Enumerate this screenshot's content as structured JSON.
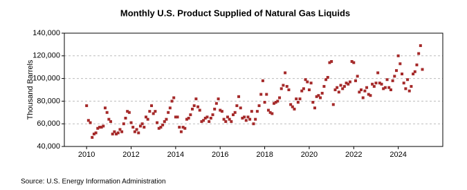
{
  "chart_data": {
    "type": "scatter",
    "title": "Monthly U.S. Product Supplied of Natural Gas Liquids",
    "y_label": "Thousand Barrels",
    "source": "Source: U.S. Energy Information Administration",
    "color": "#a52a2a",
    "grid": true,
    "xlim": [
      2009,
      2026
    ],
    "xticks": [
      2010,
      2012,
      2014,
      2016,
      2018,
      2020,
      2022,
      2024
    ],
    "ylim": [
      40000,
      140000
    ],
    "yticks": [
      {
        "value": 40000,
        "label": "40,000"
      },
      {
        "value": 60000,
        "label": "60,000"
      },
      {
        "value": 80000,
        "label": "80,000"
      },
      {
        "value": 100000,
        "label": "100,000"
      },
      {
        "value": 120000,
        "label": "120,000"
      },
      {
        "value": 140000,
        "label": "140,000"
      }
    ],
    "x": [
      2010.0,
      2010.083,
      2010.167,
      2010.25,
      2010.333,
      2010.417,
      2010.5,
      2010.583,
      2010.667,
      2010.75,
      2010.833,
      2010.917,
      2011.0,
      2011.083,
      2011.167,
      2011.25,
      2011.333,
      2011.417,
      2011.5,
      2011.583,
      2011.667,
      2011.75,
      2011.833,
      2011.917,
      2012.0,
      2012.083,
      2012.167,
      2012.25,
      2012.333,
      2012.417,
      2012.5,
      2012.583,
      2012.667,
      2012.75,
      2012.833,
      2012.917,
      2013.0,
      2013.083,
      2013.167,
      2013.25,
      2013.333,
      2013.417,
      2013.5,
      2013.583,
      2013.667,
      2013.75,
      2013.833,
      2013.917,
      2014.0,
      2014.083,
      2014.167,
      2014.25,
      2014.333,
      2014.417,
      2014.5,
      2014.583,
      2014.667,
      2014.75,
      2014.833,
      2014.917,
      2015.0,
      2015.083,
      2015.167,
      2015.25,
      2015.333,
      2015.417,
      2015.5,
      2015.583,
      2015.667,
      2015.75,
      2015.833,
      2015.917,
      2016.0,
      2016.083,
      2016.167,
      2016.25,
      2016.333,
      2016.417,
      2016.5,
      2016.583,
      2016.667,
      2016.75,
      2016.833,
      2016.917,
      2017.0,
      2017.083,
      2017.167,
      2017.25,
      2017.333,
      2017.417,
      2017.5,
      2017.583,
      2017.667,
      2017.75,
      2017.833,
      2017.917,
      2018.0,
      2018.083,
      2018.167,
      2018.25,
      2018.333,
      2018.417,
      2018.5,
      2018.583,
      2018.667,
      2018.75,
      2018.833,
      2018.917,
      2019.0,
      2019.083,
      2019.167,
      2019.25,
      2019.333,
      2019.417,
      2019.5,
      2019.583,
      2019.667,
      2019.75,
      2019.833,
      2019.917,
      2020.0,
      2020.083,
      2020.167,
      2020.25,
      2020.333,
      2020.417,
      2020.5,
      2020.583,
      2020.667,
      2020.75,
      2020.833,
      2020.917,
      2021.0,
      2021.083,
      2021.167,
      2021.25,
      2021.333,
      2021.417,
      2021.5,
      2021.583,
      2021.667,
      2021.75,
      2021.833,
      2021.917,
      2022.0,
      2022.083,
      2022.167,
      2022.25,
      2022.333,
      2022.417,
      2022.5,
      2022.583,
      2022.667,
      2022.75,
      2022.833,
      2022.917,
      2023.0,
      2023.083,
      2023.167,
      2023.25,
      2023.333,
      2023.417,
      2023.5,
      2023.583,
      2023.667,
      2023.75,
      2023.833,
      2023.917,
      2024.0,
      2024.083,
      2024.167,
      2024.25,
      2024.333,
      2024.417,
      2024.5,
      2024.583,
      2024.667,
      2024.75,
      2024.833,
      2024.917,
      2025.0,
      2025.083
    ],
    "values": [
      76000,
      63000,
      61000,
      48000,
      51000,
      52000,
      56000,
      57000,
      57000,
      58000,
      74000,
      70000,
      64000,
      62000,
      51000,
      53000,
      51000,
      52000,
      55000,
      53000,
      60000,
      65000,
      71000,
      70000,
      61000,
      57000,
      53000,
      55000,
      52000,
      58000,
      60000,
      57000,
      66000,
      64000,
      71000,
      76000,
      69000,
      71000,
      61000,
      56000,
      57000,
      59000,
      62000,
      64000,
      70000,
      74000,
      80000,
      83000,
      66000,
      66000,
      57000,
      53000,
      57000,
      56000,
      64000,
      65000,
      68000,
      73000,
      76000,
      82000,
      75000,
      72000,
      62000,
      63000,
      65000,
      66000,
      62000,
      65000,
      68000,
      73000,
      78000,
      82000,
      72000,
      71000,
      64000,
      62000,
      66000,
      64000,
      62000,
      68000,
      70000,
      76000,
      84000,
      74000,
      65000,
      66000,
      63000,
      66000,
      64000,
      71000,
      60000,
      64000,
      71000,
      76000,
      86000,
      98000,
      79000,
      86000,
      72000,
      70000,
      69000,
      78000,
      79000,
      80000,
      83000,
      91000,
      94000,
      105000,
      93000,
      90000,
      77000,
      75000,
      73000,
      82000,
      79000,
      82000,
      89000,
      91000,
      99000,
      97000,
      90000,
      96000,
      79000,
      74000,
      84000,
      85000,
      83000,
      87000,
      93000,
      99000,
      101000,
      114000,
      115000,
      77000,
      90000,
      92000,
      88000,
      94000,
      91000,
      93000,
      96000,
      95000,
      97000,
      115000,
      114000,
      98000,
      102000,
      88000,
      90000,
      83000,
      89000,
      92000,
      86000,
      85000,
      95000,
      93000,
      96000,
      105000,
      96000,
      95000,
      91000,
      92000,
      99000,
      92000,
      90000,
      98000,
      102000,
      107000,
      120000,
      113000,
      104000,
      96000,
      91000,
      99000,
      89000,
      93000,
      104000,
      106000,
      112000,
      122000,
      129000,
      108000
    ]
  }
}
